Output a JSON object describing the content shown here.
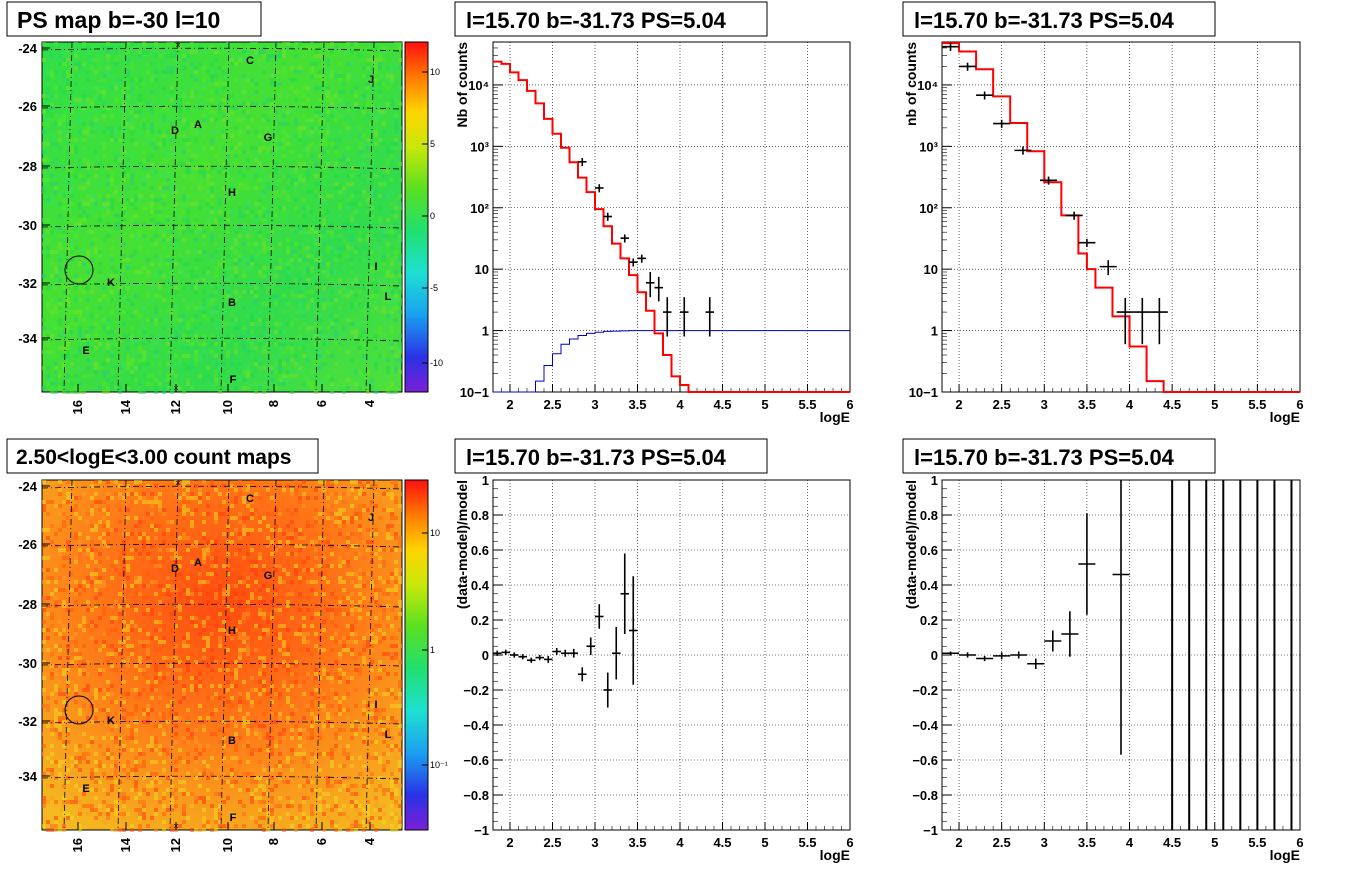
{
  "colors": {
    "data": "#000000",
    "model": "#ff0000",
    "ps_model": "#0000cc",
    "grid": "#000000"
  },
  "chart_data": [
    {
      "type": "heatmap",
      "title": "PS map b=-30 l=10",
      "xticks": [
        "16",
        "14",
        "12",
        "10",
        "8",
        "6",
        "4"
      ],
      "yticks": [
        "-24",
        "-26",
        "-28",
        "-30",
        "-32",
        "-34"
      ],
      "palette_ticks": [
        "10",
        "5",
        "0",
        "-5",
        "-10"
      ],
      "palette_scale": "linear",
      "dominant_color": "green",
      "sources": [
        "C",
        "J",
        "D",
        "A",
        "G",
        "H",
        "I",
        "K",
        "B",
        "L",
        "E",
        "F"
      ]
    },
    {
      "type": "line",
      "title": "l=15.70 b=-31.73 PS=5.04",
      "scale": "log",
      "xlabel": "logE",
      "ylabel": "Nb of counts",
      "xlim": [
        1.8,
        6
      ],
      "ylim": [
        0.1,
        50000
      ],
      "xticks": [
        "2",
        "2.5",
        "3",
        "3.5",
        "4",
        "4.5",
        "5",
        "5.5",
        "6"
      ],
      "yticks": [
        "10−1",
        "1",
        "10",
        "10²",
        "10³",
        "10⁴"
      ],
      "series": [
        {
          "role": "model",
          "edges": [
            1.8,
            1.9,
            2.0,
            2.1,
            2.2,
            2.3,
            2.4,
            2.5,
            2.6,
            2.7,
            2.8,
            2.9,
            3.0,
            3.1,
            3.2,
            3.3,
            3.4,
            3.5,
            3.6,
            3.7,
            3.8,
            3.9,
            4.0,
            4.1,
            4.2,
            6.0
          ],
          "values": [
            24000,
            22000,
            16000,
            12000,
            8000,
            5000,
            2800,
            1600,
            950,
            550,
            310,
            180,
            95,
            50,
            26,
            15,
            8,
            4.2,
            2.1,
            0.9,
            0.4,
            0.18,
            0.13,
            0.1,
            0.1
          ]
        },
        {
          "role": "ps_model",
          "edges": [
            1.8,
            2.2,
            2.3,
            2.4,
            2.5,
            2.6,
            2.7,
            2.8,
            2.9,
            3.0,
            3.1,
            3.2,
            3.3,
            3.4,
            3.5,
            6.0
          ],
          "values": [
            0.02,
            0.1,
            0.15,
            0.27,
            0.42,
            0.6,
            0.73,
            0.83,
            0.9,
            0.94,
            0.97,
            0.98,
            0.99,
            1.0,
            1.0
          ]
        },
        {
          "role": "data",
          "points": [
            {
              "x": 2.85,
              "y": 560,
              "ex": 0.05
            },
            {
              "x": 3.05,
              "y": 210,
              "ex": 0.05
            },
            {
              "x": 3.15,
              "y": 72,
              "ex": 0.05
            },
            {
              "x": 3.35,
              "y": 32,
              "ex": 0.05
            },
            {
              "x": 3.45,
              "y": 13,
              "ex": 0.05
            },
            {
              "x": 3.55,
              "y": 15,
              "ex": 0.05
            },
            {
              "x": 3.65,
              "y": 6,
              "ex": 0.05,
              "lo": 3.5,
              "hi": 9
            },
            {
              "x": 3.75,
              "y": 5,
              "ex": 0.05,
              "lo": 3,
              "hi": 7.5
            },
            {
              "x": 3.85,
              "y": 2,
              "ex": 0.05,
              "lo": 0.8,
              "hi": 3.5
            },
            {
              "x": 4.05,
              "y": 2,
              "ex": 0.05,
              "lo": 0.8,
              "hi": 3.5
            },
            {
              "x": 4.35,
              "y": 2,
              "ex": 0.05,
              "lo": 0.8,
              "hi": 3.5
            }
          ]
        }
      ]
    },
    {
      "type": "line",
      "title": "l=15.70 b=-31.73 PS=5.04",
      "scale": "log",
      "xlabel": "logE",
      "ylabel": "nb of counts",
      "xlim": [
        1.8,
        6
      ],
      "ylim": [
        0.1,
        50000
      ],
      "xticks": [
        "2",
        "2.5",
        "3",
        "3.5",
        "4",
        "4.5",
        "5",
        "5.5",
        "6"
      ],
      "yticks": [
        "10−1",
        "1",
        "10",
        "10²",
        "10³",
        "10⁴"
      ],
      "series": [
        {
          "role": "model",
          "edges": [
            1.8,
            2.0,
            2.2,
            2.4,
            2.6,
            2.8,
            3.0,
            3.2,
            3.4,
            3.5,
            3.6,
            3.8,
            4.0,
            4.2,
            4.4,
            6.0
          ],
          "values": [
            48000,
            35000,
            18000,
            6500,
            2400,
            830,
            260,
            75,
            18,
            10,
            5,
            1.7,
            0.55,
            0.15,
            0.1
          ]
        },
        {
          "role": "data",
          "points": [
            {
              "x": 1.9,
              "y": 42000,
              "ex": 0.1
            },
            {
              "x": 2.1,
              "y": 20000,
              "ex": 0.1
            },
            {
              "x": 2.3,
              "y": 6800,
              "ex": 0.1
            },
            {
              "x": 2.5,
              "y": 2350,
              "ex": 0.1
            },
            {
              "x": 2.75,
              "y": 860,
              "ex": 0.1
            },
            {
              "x": 3.05,
              "y": 280,
              "ex": 0.1
            },
            {
              "x": 3.35,
              "y": 75,
              "ex": 0.1
            },
            {
              "x": 3.5,
              "y": 27,
              "ex": 0.1
            },
            {
              "x": 3.75,
              "y": 11,
              "ex": 0.1,
              "lo": 8,
              "hi": 14
            },
            {
              "x": 3.95,
              "y": 2,
              "ex": 0.1,
              "lo": 0.6,
              "hi": 3.4
            },
            {
              "x": 4.15,
              "y": 2,
              "ex": 0.1,
              "lo": 0.6,
              "hi": 3.4
            },
            {
              "x": 4.35,
              "y": 2,
              "ex": 0.1,
              "lo": 0.6,
              "hi": 3.4
            }
          ]
        }
      ]
    },
    {
      "type": "heatmap",
      "title": "2.50<logE<3.00 count maps",
      "xticks": [
        "16",
        "14",
        "12",
        "10",
        "8",
        "6",
        "4"
      ],
      "yticks": [
        "-24",
        "-26",
        "-28",
        "-30",
        "-32",
        "-34"
      ],
      "palette_ticks": [
        "10",
        "1",
        "10⁻¹"
      ],
      "palette_scale": "log",
      "dominant_color": "orange",
      "sources": [
        "C",
        "J",
        "D",
        "A",
        "G",
        "H",
        "I",
        "K",
        "B",
        "L",
        "E",
        "F"
      ]
    },
    {
      "type": "scatter",
      "title": "l=15.70 b=-31.73 PS=5.04",
      "xlabel": "logE",
      "ylabel": "(data-model)/model",
      "xlim": [
        1.8,
        6
      ],
      "ylim": [
        -1,
        1
      ],
      "xticks": [
        "2",
        "2.5",
        "3",
        "3.5",
        "4",
        "4.5",
        "5",
        "5.5",
        "6"
      ],
      "yticks": [
        "1",
        "0.8",
        "0.6",
        "0.4",
        "0.2",
        "0",
        "−0.2",
        "−0.4",
        "−0.6",
        "−0.8",
        "−1"
      ],
      "points": [
        {
          "x": 1.85,
          "y": 0.01,
          "ex": 0.05,
          "ey": 0.015
        },
        {
          "x": 1.95,
          "y": 0.015,
          "ex": 0.05,
          "ey": 0.015
        },
        {
          "x": 2.05,
          "y": 0.0,
          "ex": 0.05,
          "ey": 0.015
        },
        {
          "x": 2.15,
          "y": -0.01,
          "ex": 0.05,
          "ey": 0.015
        },
        {
          "x": 2.25,
          "y": -0.03,
          "ex": 0.05,
          "ey": 0.015
        },
        {
          "x": 2.35,
          "y": -0.015,
          "ex": 0.05,
          "ey": 0.015
        },
        {
          "x": 2.45,
          "y": -0.025,
          "ex": 0.05,
          "ey": 0.02
        },
        {
          "x": 2.55,
          "y": 0.02,
          "ex": 0.05,
          "ey": 0.02
        },
        {
          "x": 2.65,
          "y": 0.01,
          "ex": 0.05,
          "ey": 0.02
        },
        {
          "x": 2.75,
          "y": 0.01,
          "ex": 0.05,
          "ey": 0.025
        },
        {
          "x": 2.85,
          "y": -0.11,
          "ex": 0.05,
          "ey": 0.04
        },
        {
          "x": 2.95,
          "y": 0.05,
          "ex": 0.05,
          "ey": 0.05
        },
        {
          "x": 3.05,
          "y": 0.22,
          "ex": 0.05,
          "ey": 0.07
        },
        {
          "x": 3.15,
          "y": -0.2,
          "ex": 0.05,
          "ey": 0.1
        },
        {
          "x": 3.25,
          "y": 0.01,
          "ex": 0.05,
          "ey": 0.15
        },
        {
          "x": 3.35,
          "y": 0.35,
          "ex": 0.05,
          "ey": 0.23
        },
        {
          "x": 3.45,
          "y": 0.14,
          "ex": 0.05,
          "ey": 0.31
        }
      ]
    },
    {
      "type": "scatter",
      "title": "l=15.70 b=-31.73 PS=5.04",
      "xlabel": "logE",
      "ylabel": "(data-model)/model",
      "xlim": [
        1.8,
        6
      ],
      "ylim": [
        -1,
        1
      ],
      "xticks": [
        "2",
        "2.5",
        "3",
        "3.5",
        "4",
        "4.5",
        "5",
        "5.5",
        "6"
      ],
      "yticks": [
        "1",
        "0.8",
        "0.6",
        "0.4",
        "0.2",
        "0",
        "−0.2",
        "−0.4",
        "−0.6",
        "−0.8",
        "−1"
      ],
      "points": [
        {
          "x": 1.9,
          "y": 0.01,
          "ex": 0.1,
          "ey": 0.01
        },
        {
          "x": 2.1,
          "y": 0.0,
          "ex": 0.1,
          "ey": 0.015
        },
        {
          "x": 2.3,
          "y": -0.02,
          "ex": 0.1,
          "ey": 0.015
        },
        {
          "x": 2.5,
          "y": -0.005,
          "ex": 0.1,
          "ey": 0.02
        },
        {
          "x": 2.7,
          "y": 0.0,
          "ex": 0.1,
          "ey": 0.02
        },
        {
          "x": 2.9,
          "y": -0.05,
          "ex": 0.1,
          "ey": 0.03
        },
        {
          "x": 3.1,
          "y": 0.08,
          "ex": 0.1,
          "ey": 0.06
        },
        {
          "x": 3.3,
          "y": 0.12,
          "ex": 0.1,
          "ey": 0.13
        },
        {
          "x": 3.5,
          "y": 0.52,
          "ex": 0.1,
          "ey": 0.29
        },
        {
          "x": 3.9,
          "y": 0.46,
          "ex": 0.1,
          "ey": 1.03
        }
      ],
      "vlines_x": [
        4.5,
        4.7,
        4.9,
        5.1,
        5.3,
        5.5,
        5.7,
        5.9
      ]
    }
  ]
}
